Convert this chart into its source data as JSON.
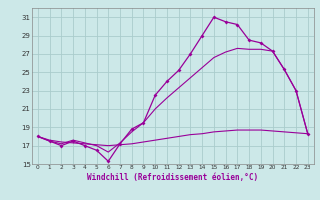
{
  "xlabel": "Windchill (Refroidissement éolien,°C)",
  "background_color": "#cce8e8",
  "grid_color": "#aacccc",
  "line_color": "#990099",
  "x_hours": [
    0,
    1,
    2,
    3,
    4,
    5,
    6,
    7,
    8,
    9,
    10,
    11,
    12,
    13,
    14,
    15,
    16,
    17,
    18,
    19,
    20,
    21,
    22,
    23
  ],
  "temp_curve": [
    18.0,
    17.5,
    17.0,
    17.5,
    17.0,
    16.5,
    15.3,
    17.2,
    18.8,
    19.5,
    22.5,
    24.0,
    25.2,
    27.0,
    29.0,
    31.0,
    30.5,
    30.2,
    28.5,
    28.2,
    27.3,
    25.3,
    23.0,
    18.3
  ],
  "linear_low": [
    18.0,
    17.6,
    17.4,
    17.3,
    17.2,
    17.1,
    17.0,
    17.1,
    17.2,
    17.4,
    17.6,
    17.8,
    18.0,
    18.2,
    18.3,
    18.5,
    18.6,
    18.7,
    18.7,
    18.7,
    18.6,
    18.5,
    18.4,
    18.3
  ],
  "linear_high": [
    18.0,
    17.5,
    17.2,
    17.6,
    17.3,
    17.0,
    16.3,
    17.3,
    18.5,
    19.5,
    21.0,
    22.2,
    23.3,
    24.4,
    25.5,
    26.6,
    27.2,
    27.6,
    27.5,
    27.5,
    27.3,
    25.3,
    23.0,
    18.3
  ],
  "ylim": [
    15,
    32
  ],
  "yticks": [
    15,
    17,
    19,
    21,
    23,
    25,
    27,
    29,
    31
  ],
  "xlim": [
    -0.5,
    23.5
  ]
}
